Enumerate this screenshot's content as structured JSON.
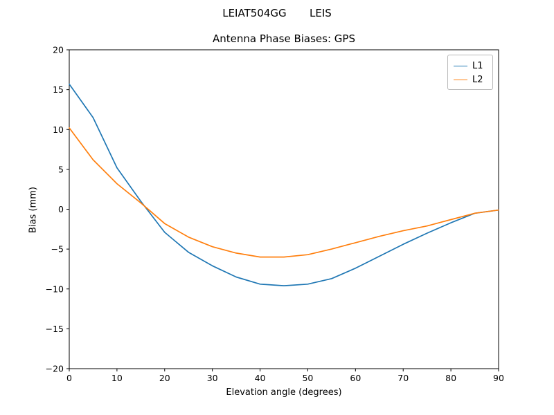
{
  "header": {
    "title": "LEIAT504GG       LEIS",
    "subtitle": "Antenna Phase Biases: GPS"
  },
  "chart_data": {
    "type": "line",
    "title": "Antenna Phase Biases: GPS",
    "xlabel": "Elevation angle (degrees)",
    "ylabel": "Bias (mm)",
    "xlim": [
      0,
      90
    ],
    "ylim": [
      -20,
      20
    ],
    "xticks": [
      0,
      10,
      20,
      30,
      40,
      50,
      60,
      70,
      80,
      90
    ],
    "yticks": [
      -20,
      -15,
      -10,
      -5,
      0,
      5,
      10,
      15,
      20
    ],
    "grid": false,
    "legend_position": "top-right",
    "x": [
      0,
      5,
      10,
      15,
      20,
      25,
      30,
      35,
      40,
      45,
      50,
      55,
      60,
      65,
      70,
      75,
      80,
      85,
      90
    ],
    "series": [
      {
        "name": "L1",
        "color": "#1f77b4",
        "values": [
          15.7,
          11.5,
          5.2,
          1.0,
          -2.9,
          -5.4,
          -7.1,
          -8.5,
          -9.4,
          -9.6,
          -9.4,
          -8.7,
          -7.4,
          -5.9,
          -4.4,
          -3.0,
          -1.7,
          -0.5,
          -0.1
        ]
      },
      {
        "name": "L2",
        "color": "#ff7f0e",
        "values": [
          10.2,
          6.2,
          3.2,
          0.8,
          -1.8,
          -3.5,
          -4.7,
          -5.5,
          -6.0,
          -6.0,
          -5.7,
          -5.0,
          -4.2,
          -3.4,
          -2.7,
          -2.1,
          -1.3,
          -0.5,
          -0.1
        ]
      }
    ]
  }
}
